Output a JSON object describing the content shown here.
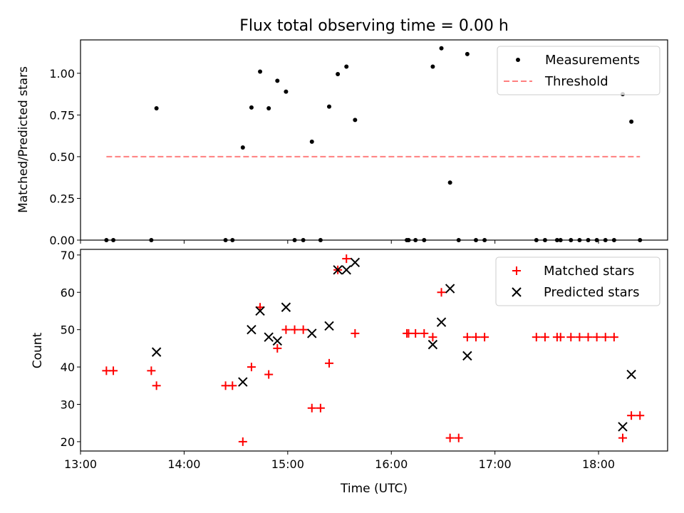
{
  "chart_data": [
    {
      "type": "scatter",
      "title": "Flux total observing time = 0.00 h",
      "xlabel": "",
      "ylabel": "Matched/Predicted stars",
      "xlim": [
        "12:60",
        "18:40"
      ],
      "ylim": [
        0,
        1.2
      ],
      "x_ticks": [],
      "y_ticks": [
        "0.00",
        "0.25",
        "0.50",
        "0.75",
        "1.00"
      ],
      "legend_position": "upper right",
      "series": [
        {
          "name": "Measurements",
          "kind": "scatter",
          "marker": "dot",
          "color": "#000000",
          "points": [
            [
              "13:15",
              0.0
            ],
            [
              "13:19",
              0.0
            ],
            [
              "13:41",
              0.0
            ],
            [
              "13:44",
              0.79
            ],
            [
              "14:24",
              0.0
            ],
            [
              "14:28",
              0.0
            ],
            [
              "14:34",
              0.555
            ],
            [
              "14:39",
              0.795
            ],
            [
              "14:44",
              1.01
            ],
            [
              "14:49",
              0.79
            ],
            [
              "14:54",
              0.955
            ],
            [
              "14:59",
              0.89
            ],
            [
              "15:04",
              0.0
            ],
            [
              "15:09",
              0.0
            ],
            [
              "15:14",
              0.59
            ],
            [
              "15:19",
              0.0
            ],
            [
              "15:24",
              0.8
            ],
            [
              "15:29",
              0.995
            ],
            [
              "15:34",
              1.04
            ],
            [
              "15:39",
              0.72
            ],
            [
              "16:09",
              0.0
            ],
            [
              "16:10",
              0.0
            ],
            [
              "16:14",
              0.0
            ],
            [
              "16:19",
              0.0
            ],
            [
              "16:24",
              1.04
            ],
            [
              "16:29",
              1.15
            ],
            [
              "16:34",
              0.345
            ],
            [
              "16:39",
              0.0
            ],
            [
              "16:44",
              1.115
            ],
            [
              "16:49",
              0.0
            ],
            [
              "16:54",
              0.0
            ],
            [
              "17:24",
              0.0
            ],
            [
              "17:29",
              0.0
            ],
            [
              "17:36",
              0.0
            ],
            [
              "17:38",
              0.0
            ],
            [
              "17:44",
              0.0
            ],
            [
              "17:49",
              0.0
            ],
            [
              "17:54",
              0.0
            ],
            [
              "17:59",
              0.0
            ],
            [
              "18:04",
              0.0
            ],
            [
              "18:09",
              0.0
            ],
            [
              "18:14",
              0.875
            ],
            [
              "18:19",
              0.71
            ],
            [
              "18:24",
              0.0
            ]
          ]
        },
        {
          "name": "Threshold",
          "kind": "line",
          "style": "dashed",
          "color": "#ff7f7f",
          "points": [
            [
              "13:15",
              0.5
            ],
            [
              "18:24",
              0.5
            ]
          ]
        }
      ]
    },
    {
      "type": "scatter",
      "title": "",
      "xlabel": "Time (UTC)",
      "ylabel": "Count",
      "xlim": [
        "12:60",
        "18:40"
      ],
      "ylim": [
        17.5,
        71.5
      ],
      "x_ticks": [
        "13:00",
        "14:00",
        "15:00",
        "16:00",
        "17:00",
        "18:00"
      ],
      "y_ticks": [
        "20",
        "30",
        "40",
        "50",
        "60",
        "70"
      ],
      "legend_position": "upper right",
      "series": [
        {
          "name": "Matched stars",
          "kind": "scatter",
          "marker": "plus",
          "color": "#ff0000",
          "points": [
            [
              "13:15",
              39
            ],
            [
              "13:19",
              39
            ],
            [
              "13:41",
              39
            ],
            [
              "13:44",
              35
            ],
            [
              "14:24",
              35
            ],
            [
              "14:28",
              35
            ],
            [
              "14:34",
              20
            ],
            [
              "14:39",
              40
            ],
            [
              "14:44",
              56
            ],
            [
              "14:49",
              38
            ],
            [
              "14:54",
              45
            ],
            [
              "14:59",
              50
            ],
            [
              "15:04",
              50
            ],
            [
              "15:09",
              50
            ],
            [
              "15:14",
              29
            ],
            [
              "15:19",
              29
            ],
            [
              "15:24",
              41
            ],
            [
              "15:29",
              66
            ],
            [
              "15:34",
              69
            ],
            [
              "15:39",
              49
            ],
            [
              "16:09",
              49
            ],
            [
              "16:10",
              49
            ],
            [
              "16:14",
              49
            ],
            [
              "16:19",
              49
            ],
            [
              "16:24",
              48
            ],
            [
              "16:29",
              60
            ],
            [
              "16:34",
              21
            ],
            [
              "16:39",
              21
            ],
            [
              "16:44",
              48
            ],
            [
              "16:49",
              48
            ],
            [
              "16:54",
              48
            ],
            [
              "17:24",
              48
            ],
            [
              "17:29",
              48
            ],
            [
              "17:36",
              48
            ],
            [
              "17:38",
              48
            ],
            [
              "17:44",
              48
            ],
            [
              "17:49",
              48
            ],
            [
              "17:54",
              48
            ],
            [
              "17:59",
              48
            ],
            [
              "18:04",
              48
            ],
            [
              "18:09",
              48
            ],
            [
              "18:14",
              21
            ],
            [
              "18:19",
              27
            ],
            [
              "18:24",
              27
            ]
          ]
        },
        {
          "name": "Predicted stars",
          "kind": "scatter",
          "marker": "x",
          "color": "#000000",
          "points": [
            [
              "13:44",
              44
            ],
            [
              "14:34",
              36
            ],
            [
              "14:39",
              50
            ],
            [
              "14:44",
              55
            ],
            [
              "14:49",
              48
            ],
            [
              "14:54",
              47
            ],
            [
              "14:59",
              56
            ],
            [
              "15:14",
              49
            ],
            [
              "15:24",
              51
            ],
            [
              "15:29",
              66
            ],
            [
              "15:34",
              66
            ],
            [
              "15:39",
              68
            ],
            [
              "16:24",
              46
            ],
            [
              "16:29",
              52
            ],
            [
              "16:34",
              61
            ],
            [
              "16:44",
              43
            ],
            [
              "18:14",
              24
            ],
            [
              "18:19",
              38
            ]
          ]
        }
      ]
    }
  ]
}
